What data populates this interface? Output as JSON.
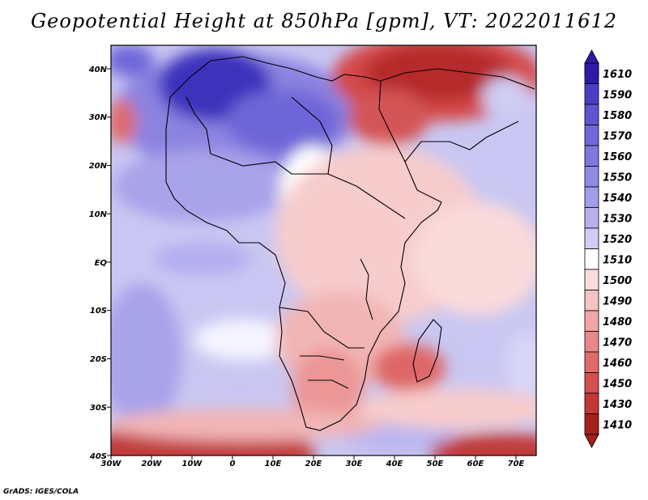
{
  "title": "Geopotential Height at 850hPa [gpm], VT: 2022011612",
  "credit": "GrADS: IGES/COLA",
  "map": {
    "lon_labels": [
      "30W",
      "20W",
      "10W",
      "0",
      "10E",
      "20E",
      "30E",
      "40E",
      "50E",
      "60E",
      "70E"
    ],
    "lat_labels": [
      "40N",
      "30N",
      "20N",
      "10N",
      "EQ",
      "10S",
      "20S",
      "30S",
      "40S"
    ],
    "lon_range": [
      -30,
      75
    ],
    "lat_range": [
      -40,
      45
    ]
  },
  "colorbar": {
    "levels": [
      "1610",
      "1590",
      "1580",
      "1570",
      "1560",
      "1550",
      "1540",
      "1530",
      "1520",
      "1510",
      "1500",
      "1490",
      "1480",
      "1470",
      "1460",
      "1450",
      "1430",
      "1410"
    ],
    "colors": [
      "#2e1aa8",
      "#4a3ec4",
      "#5e55d0",
      "#7068d8",
      "#8078de",
      "#928ae3",
      "#a39ce8",
      "#b7b2ee",
      "#cfcdf4",
      "#ffffff",
      "#fbdcdc",
      "#f6c2c2",
      "#f0a6a6",
      "#e88888",
      "#e06b6b",
      "#d44f4f",
      "#c43737",
      "#a51f1f"
    ]
  }
}
